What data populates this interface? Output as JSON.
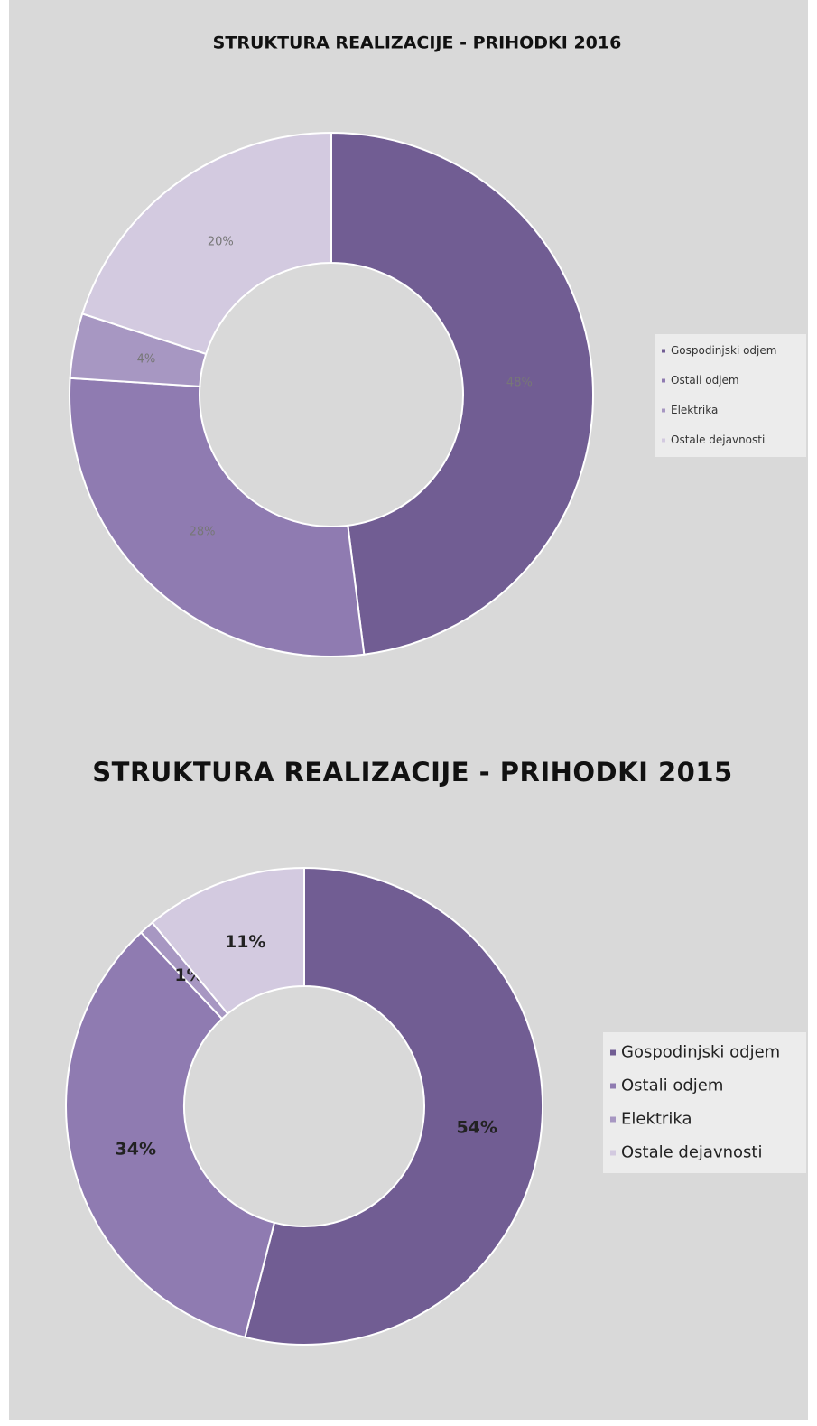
{
  "chart_data": [
    {
      "type": "donut",
      "title": "STRUKTURA REALIZACIJE - PRIHODKI  2016",
      "categories": [
        "Gospodinjski odjem",
        "Ostali odjem",
        "Elektrika",
        "Ostale dejavnosti"
      ],
      "values": [
        48,
        28,
        4,
        20
      ],
      "value_labels": [
        "48%",
        "28%",
        "4%",
        "20%"
      ],
      "colors": [
        "#715d93",
        "#8f7bb1",
        "#a797c2",
        "#d3cae0"
      ],
      "legend": "right"
    },
    {
      "type": "donut",
      "title": "STRUKTURA REALIZACIJE - PRIHODKI  2015",
      "categories": [
        "Gospodinjski odjem",
        "Ostali odjem",
        "Elektrika",
        "Ostale dejavnosti"
      ],
      "values": [
        54,
        34,
        1,
        11
      ],
      "value_labels": [
        "54%",
        "34%",
        "1%",
        "11%"
      ],
      "colors": [
        "#715d93",
        "#8f7bb1",
        "#a797c2",
        "#d3cae0"
      ],
      "legend": "right"
    }
  ]
}
